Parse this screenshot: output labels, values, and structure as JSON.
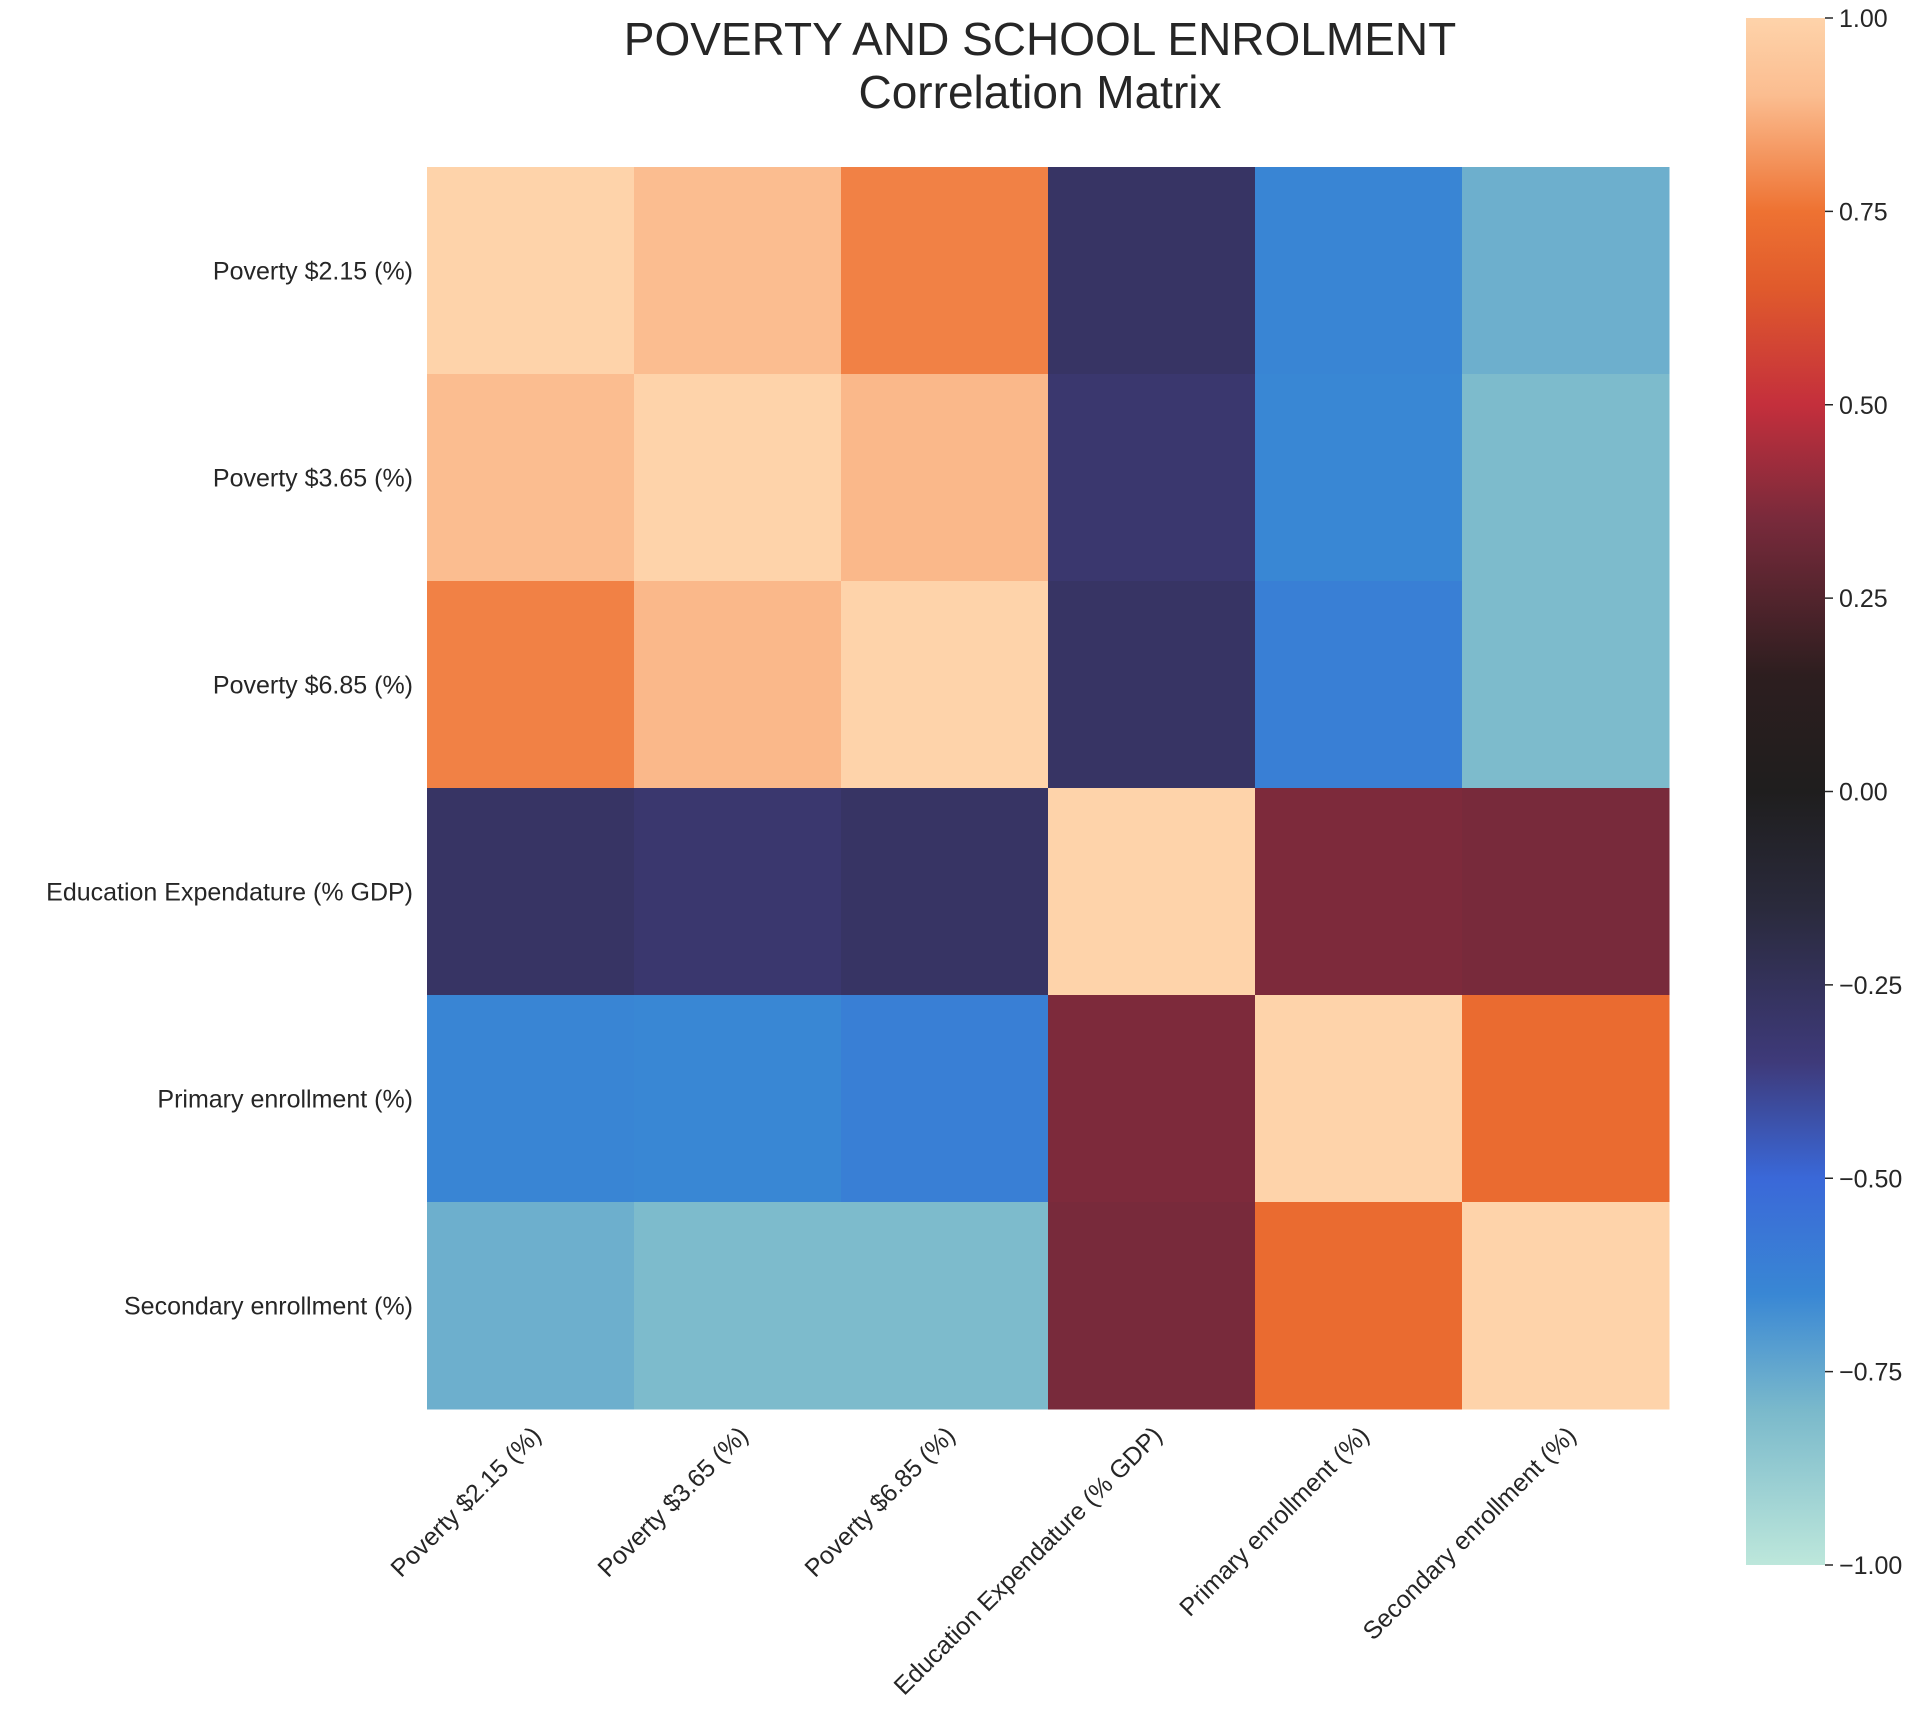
{
  "chart_data": {
    "type": "heatmap",
    "title": "POVERTY AND SCHOOL ENROLMENT",
    "subtitle": "Correlation Matrix",
    "row_labels": [
      "Poverty $2.15 (%)",
      "Poverty $3.65 (%)",
      "Poverty $6.85 (%)",
      "Education Expendature (% GDP)",
      "Primary enrollment (%)",
      "Secondary enrollment (%)"
    ],
    "col_labels": [
      "Poverty $2.15 (%)",
      "Poverty $3.65 (%)",
      "Poverty $6.85 (%)",
      "Education Expendature (% GDP)",
      "Primary enrollment (%)",
      "Secondary enrollment (%)"
    ],
    "values": [
      [
        1.0,
        0.9,
        0.78,
        -0.28,
        -0.64,
        -0.77
      ],
      [
        0.9,
        1.0,
        0.89,
        -0.31,
        -0.65,
        -0.81
      ],
      [
        0.78,
        0.89,
        1.0,
        -0.28,
        -0.61,
        -0.81
      ],
      [
        -0.28,
        -0.31,
        -0.28,
        1.0,
        0.36,
        0.35
      ],
      [
        -0.64,
        -0.65,
        -0.61,
        0.36,
        1.0,
        0.72
      ],
      [
        -0.77,
        -0.81,
        -0.81,
        0.35,
        0.72,
        1.0
      ]
    ],
    "vmin": -1.0,
    "vmax": 1.0,
    "colormap": "icefire",
    "colorbar_ticks": [
      -1.0,
      -0.75,
      -0.5,
      -0.25,
      0.0,
      0.25,
      0.5,
      0.75,
      1.0
    ],
    "colorbar_tick_labels": [
      "−1.00",
      "−0.75",
      "−0.50",
      "−0.25",
      "0.00",
      "0.25",
      "0.50",
      "0.75",
      "1.00"
    ],
    "colorbar_stops": [
      {
        "v": -1.0,
        "color": "#bde7db"
      },
      {
        "v": -0.8,
        "color": "#7ab9cb"
      },
      {
        "v": -0.65,
        "color": "#3987d4"
      },
      {
        "v": -0.5,
        "color": "#3a68d8"
      },
      {
        "v": -0.35,
        "color": "#3e3a7a"
      },
      {
        "v": -0.15,
        "color": "#2a2a3c"
      },
      {
        "v": 0.0,
        "color": "#1f1e1e"
      },
      {
        "v": 0.15,
        "color": "#2d1e1f"
      },
      {
        "v": 0.35,
        "color": "#782a3b"
      },
      {
        "v": 0.5,
        "color": "#c42f3c"
      },
      {
        "v": 0.65,
        "color": "#e05a2c"
      },
      {
        "v": 0.75,
        "color": "#ee7232"
      },
      {
        "v": 0.9,
        "color": "#fbbd90"
      },
      {
        "v": 1.0,
        "color": "#fed3aa"
      }
    ]
  }
}
